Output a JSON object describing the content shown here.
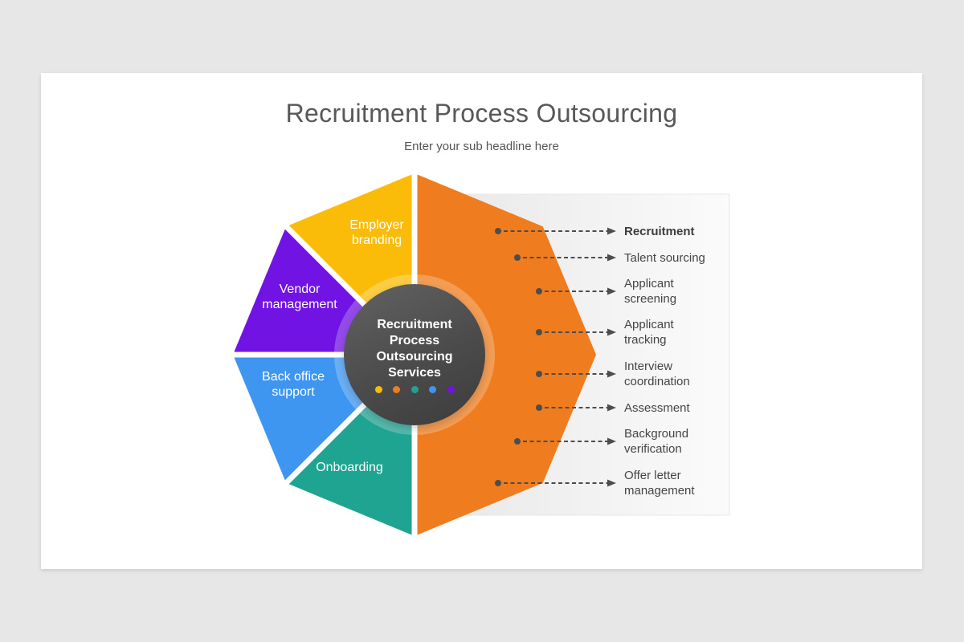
{
  "title": "Recruitment Process Outsourcing",
  "subtitle": "Enter your sub headline here",
  "hub": {
    "label": "Recruitment\nProcess\nOutsourcing\nServices",
    "dot_colors": [
      "#FBBC09",
      "#EF7D1F",
      "#20A492",
      "#3E96F1",
      "#7113E2"
    ]
  },
  "wheel": {
    "slices": [
      {
        "name": "recruitment-services",
        "color": "#EF7D1F"
      },
      {
        "name": "employer-branding",
        "color": "#FBBC09",
        "label": "Employer\nbranding"
      },
      {
        "name": "vendor-management",
        "color": "#7113E2",
        "label": "Vendor\nmanagement"
      },
      {
        "name": "back-office-support",
        "color": "#3E96F1",
        "label": "Back office\nsupport"
      },
      {
        "name": "onboarding",
        "color": "#20A492",
        "label": "Onboarding"
      }
    ]
  },
  "services": {
    "items": [
      {
        "label": "Recruitment"
      },
      {
        "label": "Talent sourcing"
      },
      {
        "label": "Applicant\nscreening"
      },
      {
        "label": "Applicant\ntracking"
      },
      {
        "label": "Interview\ncoordination"
      },
      {
        "label": "Assessment"
      },
      {
        "label": "Background\nverification"
      },
      {
        "label": "Offer letter\nmanagement"
      }
    ]
  },
  "colors": {
    "arrow": "#4D4D4D",
    "title_text": "#57585A",
    "body_text": "#454545",
    "page_background": "#E8E7E8",
    "card_background": "#FFFFFF"
  }
}
